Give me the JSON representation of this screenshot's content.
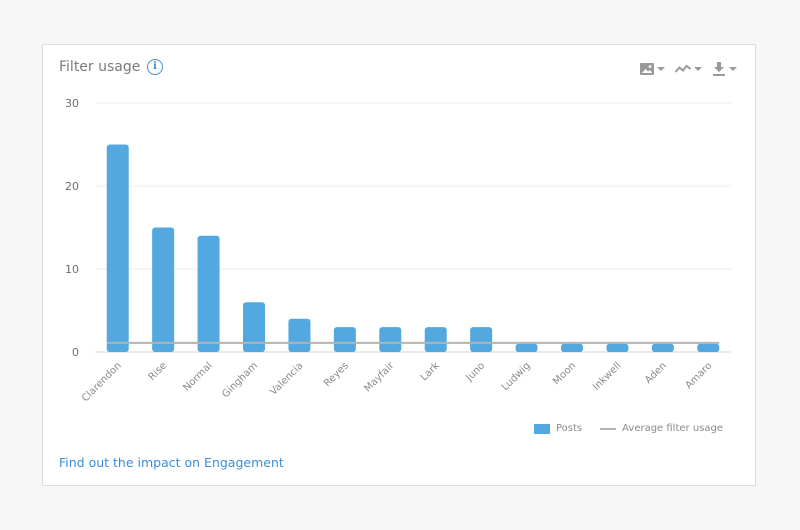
{
  "card": {
    "title": "Filter usage",
    "info_glyph": "i",
    "link_text": "Find out the impact on Engagement"
  },
  "toolbar": {
    "icons": [
      "image-icon",
      "line-chart-icon",
      "download-icon"
    ]
  },
  "colors": {
    "bar": "#52a8df",
    "average_line": "#b3b3b3",
    "link": "#3a8fd8"
  },
  "legend": {
    "bar_label": "Posts",
    "line_label": "Average filter usage",
    "placement": "bottom-right"
  },
  "chart_data": {
    "type": "bar",
    "title": "Filter usage",
    "categories": [
      "Clarendon",
      "Rise",
      "Normal",
      "Gingham",
      "Valencia",
      "Reyes",
      "Mayfair",
      "Lark",
      "Juno",
      "Ludwig",
      "Moon",
      "Inkwell",
      "Aden",
      "Amaro"
    ],
    "series": [
      {
        "name": "Posts",
        "type": "bar",
        "values": [
          25,
          15,
          14,
          6,
          4,
          3,
          3,
          3,
          3,
          1,
          1,
          1,
          1,
          1
        ]
      },
      {
        "name": "Average filter usage",
        "type": "line",
        "values": [
          1.1,
          1.1,
          1.1,
          1.1,
          1.1,
          1.1,
          1.1,
          1.1,
          1.1,
          1.1,
          1.1,
          1.1,
          1.1,
          1.1
        ]
      }
    ],
    "yticks": [
      0,
      10,
      20,
      30
    ],
    "ylim": [
      0,
      30
    ],
    "grid": true,
    "xlabel": "",
    "ylabel": ""
  }
}
